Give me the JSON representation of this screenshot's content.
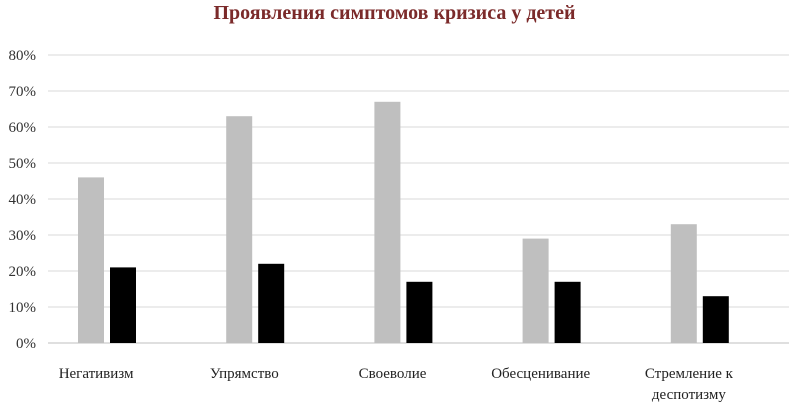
{
  "chart_data": {
    "type": "bar",
    "title": "Проявления симптомов кризиса у детей",
    "categories": [
      [
        "Негативизм"
      ],
      [
        "Упрямство"
      ],
      [
        "Своеволие"
      ],
      [
        "Обесценивание"
      ],
      [
        "Стремление к",
        "деспотизму"
      ]
    ],
    "series": [
      {
        "color": "#bfbfbf",
        "values": [
          46,
          63,
          67,
          29,
          33
        ]
      },
      {
        "color": "#000000",
        "values": [
          21,
          22,
          17,
          17,
          13
        ]
      }
    ],
    "ylim": [
      0,
      80
    ],
    "yticks": [
      "0%",
      "10%",
      "20%",
      "30%",
      "40%",
      "50%",
      "60%",
      "70%",
      "80%"
    ],
    "grid": true,
    "legend": "none"
  }
}
